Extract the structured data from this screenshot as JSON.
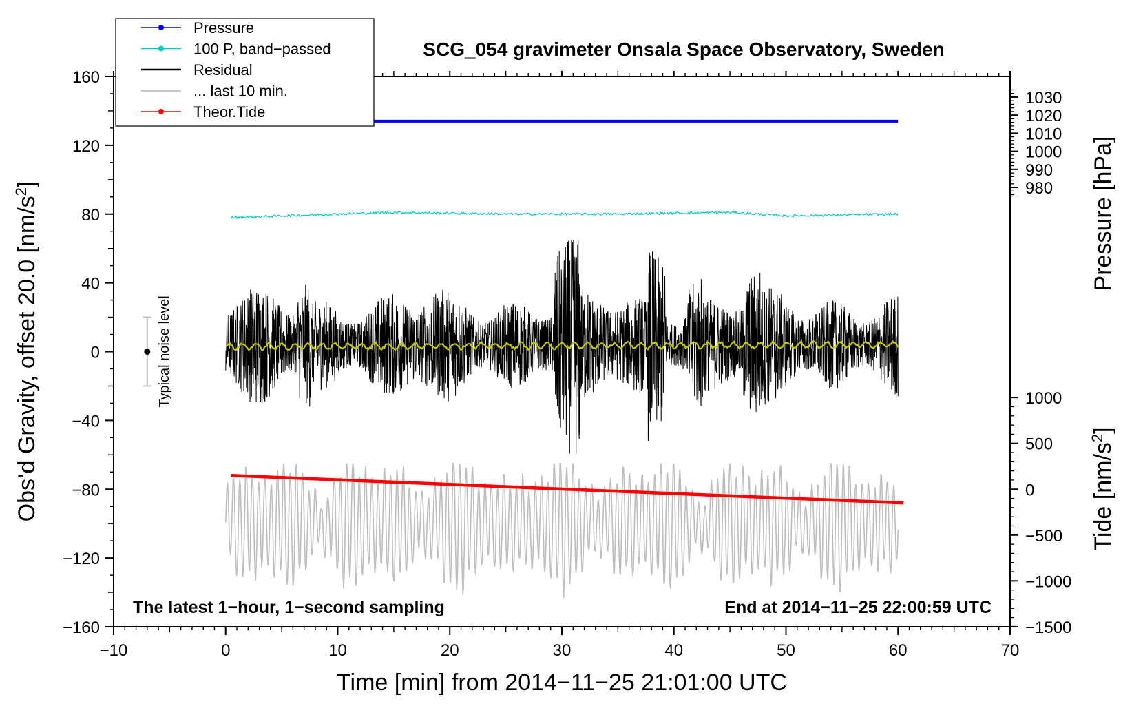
{
  "chart_data": {
    "type": "line",
    "title": "SCG_054 gravimeter Onsala Space Observatory, Sweden",
    "xlabel": "Time [min] from 2014−11−25 21:01:00 UTC",
    "ylabel_left_main": "Obs’d Gravity, offset 20.0 [nm/s",
    "ylabel_left_sup": "2",
    "ylabel_left_end": "]",
    "ylabel_right_top": "Pressure [hPa]",
    "ylabel_right_bottom_main": "Tide [nm/s",
    "ylabel_right_bottom_sup": "2",
    "ylabel_right_bottom_end": "]",
    "xlim": [
      -10,
      70
    ],
    "ylim": [
      -160,
      160
    ],
    "x_ticks": [
      -10,
      0,
      10,
      20,
      30,
      40,
      50,
      60,
      70
    ],
    "x_tick_labels": [
      "−10",
      "0",
      "10",
      "20",
      "30",
      "40",
      "50",
      "60",
      "70"
    ],
    "y_ticks": [
      160,
      120,
      80,
      40,
      0,
      -40,
      -80,
      -120,
      -160
    ],
    "y_tick_labels": [
      "160",
      "120",
      "80",
      "40",
      "0",
      "−40",
      "−80",
      "−120",
      "−160"
    ],
    "pressure_axis": {
      "ticks": [
        1030,
        1020,
        1010,
        1000,
        990,
        980
      ],
      "tick_labels": [
        "1030",
        "1020",
        "1010",
        "1000",
        "990",
        "980"
      ],
      "gravity_at_1030": 148,
      "gravity_per_hpa": 1.05
    },
    "tide_axis": {
      "ticks": [
        1000,
        500,
        0,
        -500,
        -1000,
        -1500
      ],
      "tick_labels": [
        "1000",
        "500",
        "0",
        "−500",
        "−1000",
        "−1500"
      ],
      "gravity_at_0": -80,
      "gravity_per_unit": 0.0533
    },
    "legend": [
      {
        "label": "Pressure",
        "color": "#0000ff",
        "marker": true
      },
      {
        "label": "100 P, band−passed",
        "color": "#00c8c8",
        "marker": true
      },
      {
        "label": "Residual",
        "color": "#000000",
        "marker": false
      },
      {
        "label": "... last 10 min.",
        "color": "#bebebe",
        "marker": false
      },
      {
        "label": "Theor.Tide",
        "color": "#ff0000",
        "marker": true
      }
    ],
    "series": [
      {
        "name": "Pressure",
        "color": "#0000ff",
        "x": [
          0,
          60
        ],
        "values": [
          134,
          134
        ]
      },
      {
        "name": "100 P, band-passed",
        "color": "#00c8c8",
        "x": [
          0.5,
          5,
          15,
          25,
          35,
          45,
          50,
          60
        ],
        "values": [
          78,
          79,
          81,
          80,
          80,
          81,
          79,
          80
        ]
      },
      {
        "name": "Residual",
        "color": "#000000",
        "x": [
          0,
          60
        ],
        "envelope": [
          -50,
          65
        ],
        "mean": 4
      },
      {
        "name": "Residual smoothed",
        "color": "#c8c800",
        "x": [
          0,
          60
        ],
        "values": [
          3,
          4
        ]
      },
      {
        "name": "Theor.Tide",
        "color": "#ff0000",
        "x": [
          0.5,
          60.5
        ],
        "values": [
          -72,
          -88
        ]
      },
      {
        "name": "... last 10 min.",
        "color": "#bebebe",
        "x": [
          0,
          60
        ],
        "range": [
          -145,
          -65
        ],
        "mean": -100
      }
    ],
    "noise_bar": {
      "label": "Typical noise level",
      "x": -7,
      "center": 0,
      "low": -20,
      "high": 20
    },
    "annotations": {
      "bottom_left": "The latest 1−hour, 1−second sampling",
      "bottom_right": "End at 2014−11−25 22:00:59 UTC"
    }
  }
}
